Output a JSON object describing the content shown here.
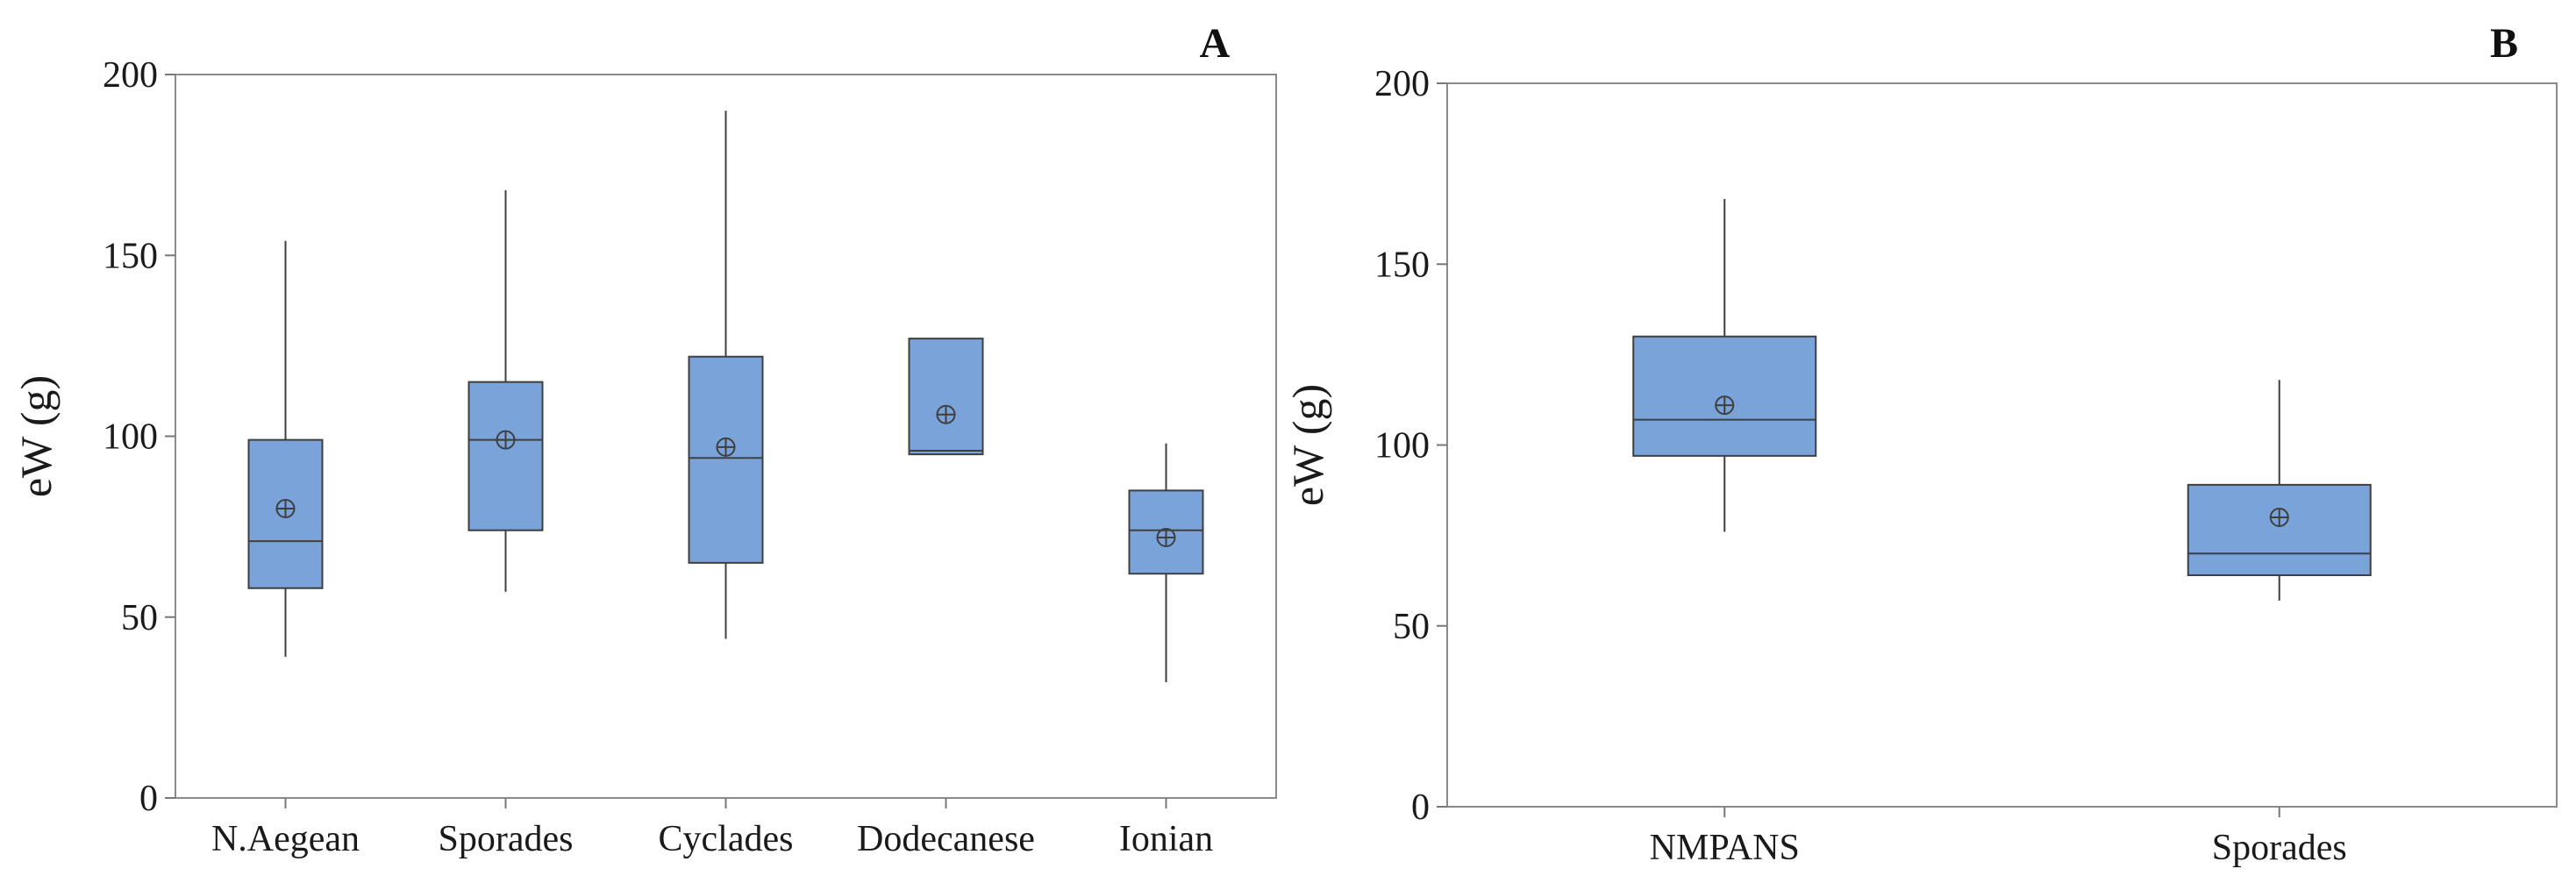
{
  "chart_data": [
    {
      "type": "boxplot",
      "panel_label": "A",
      "ylabel": "eW (g)",
      "ylim": [
        0,
        200
      ],
      "yticks": [
        0,
        50,
        100,
        150,
        200
      ],
      "categories": [
        "N.Aegean",
        "Sporades",
        "Cyclades",
        "Dodecanese",
        "Ionian"
      ],
      "boxes": [
        {
          "min": 39,
          "q1": 58,
          "median": 71,
          "q3": 99,
          "max": 154,
          "mean": 80
        },
        {
          "min": 57,
          "q1": 74,
          "median": 99,
          "q3": 115,
          "max": 168,
          "mean": 99
        },
        {
          "min": 44,
          "q1": 65,
          "median": 94,
          "q3": 122,
          "max": 190,
          "mean": 97
        },
        {
          "min": 95,
          "q1": 95,
          "median": 96,
          "q3": 127,
          "max": 127,
          "mean": 106
        },
        {
          "min": 32,
          "q1": 62,
          "median": 74,
          "q3": 85,
          "max": 98,
          "mean": 72
        }
      ]
    },
    {
      "type": "boxplot",
      "panel_label": "B",
      "ylabel": "eW (g)",
      "ylim": [
        0,
        200
      ],
      "yticks": [
        0,
        50,
        100,
        150,
        200
      ],
      "categories": [
        "NMPANS",
        "Sporades"
      ],
      "boxes": [
        {
          "min": 76,
          "q1": 97,
          "median": 107,
          "q3": 130,
          "max": 168,
          "mean": 111
        },
        {
          "min": 57,
          "q1": 64,
          "median": 70,
          "q3": 89,
          "max": 118,
          "mean": 80
        }
      ]
    }
  ]
}
